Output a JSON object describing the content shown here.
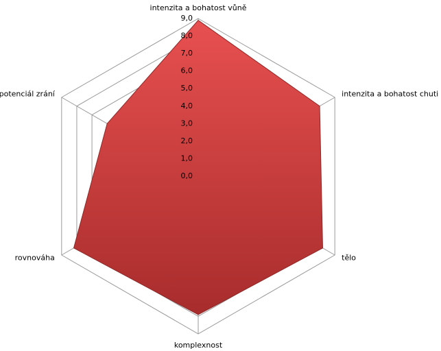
{
  "chart_data": {
    "type": "radar",
    "categories": [
      "intenzita a bohatost  vůně",
      "intenzita a bohatost  chuti",
      "tělo",
      "komplexnost",
      "rovnováha",
      "potenciál zrání"
    ],
    "series": [
      {
        "color": "#d94343",
        "values": [
          8.9,
          8.0,
          8.2,
          7.9,
          8.2,
          6.0
        ]
      }
    ],
    "ylim": [
      0,
      9
    ],
    "yticks": [
      {
        "value": 0,
        "label": "0,0"
      },
      {
        "value": 1,
        "label": "1,0"
      },
      {
        "value": 2,
        "label": "2,0"
      },
      {
        "value": 3,
        "label": "3,0"
      },
      {
        "value": 4,
        "label": "4,0"
      },
      {
        "value": 5,
        "label": "5,0"
      },
      {
        "value": 6,
        "label": "6,0"
      },
      {
        "value": 7,
        "label": "7,0"
      },
      {
        "value": 8,
        "label": "8,0"
      },
      {
        "value": 9,
        "label": "9,0"
      }
    ],
    "grid": true
  }
}
